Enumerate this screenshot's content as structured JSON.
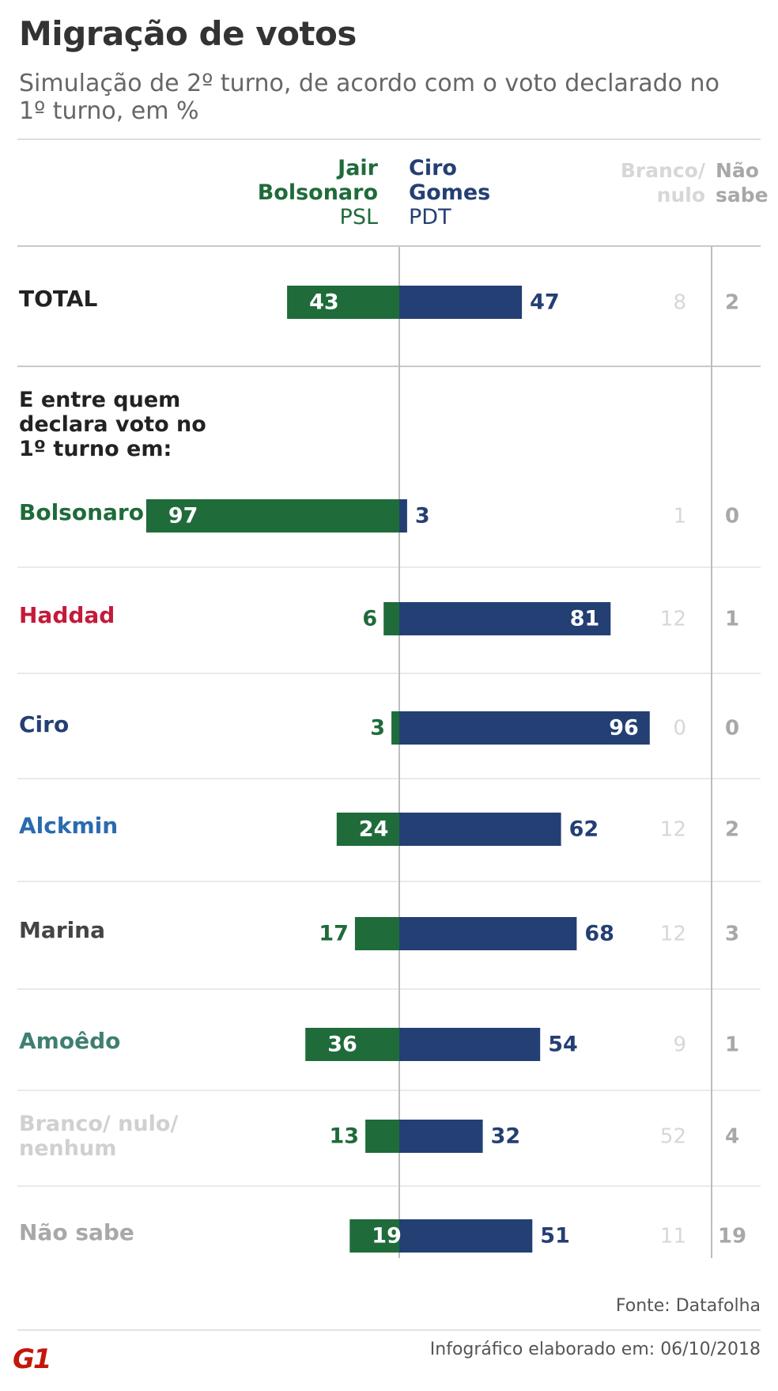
{
  "title": "Migração de votos",
  "subtitle": "Simulação de 2º turno, de acordo com o voto declarado no 1º turno, em %",
  "header": {
    "a_name1": "Jair",
    "a_name2": "Bolsonaro",
    "a_party": "PSL",
    "b_name1": "Ciro",
    "b_name2": "Gomes",
    "b_party": "PDT",
    "c_line1": "Branco/",
    "c_line2": "nulo",
    "d_line1": "Não",
    "d_line2": "sabe"
  },
  "section_label": "E entre quem declara voto no 1º turno em:",
  "colors": {
    "bolsonaro": "#1f6b3a",
    "ciro": "#243f73",
    "branco": "#d7d7d7",
    "naosabe": "#a8a8a8"
  },
  "chart_data": {
    "type": "bar",
    "orientation": "horizontal-diverging",
    "series": [
      {
        "name": "Jair Bolsonaro PSL",
        "color": "#1f6b3a",
        "values": [
          43,
          97,
          6,
          3,
          24,
          17,
          36,
          13,
          19
        ]
      },
      {
        "name": "Ciro Gomes PDT",
        "color": "#243f73",
        "values": [
          47,
          3,
          81,
          96,
          62,
          68,
          54,
          32,
          51
        ]
      },
      {
        "name": "Branco/ nulo",
        "color": "#d7d7d7",
        "values": [
          8,
          1,
          12,
          0,
          12,
          12,
          9,
          52,
          11
        ]
      },
      {
        "name": "Não sabe",
        "color": "#a8a8a8",
        "values": [
          2,
          0,
          1,
          0,
          2,
          3,
          1,
          4,
          19
        ]
      }
    ],
    "categories": [
      "TOTAL",
      "Bolsonaro",
      "Haddad",
      "Ciro",
      "Alckmin",
      "Marina",
      "Amoêdo",
      "Branco/ nulo/ nenhum",
      "Não sabe"
    ],
    "category_colors": [
      "#222222",
      "#1f6b3a",
      "#c41a3b",
      "#243f73",
      "#2a6bb0",
      "#444444",
      "#3f7f72",
      "#d0d0d0",
      "#a8a8a8"
    ],
    "units": "%"
  },
  "footer": {
    "source_label": "Fonte:",
    "source_value": "Datafolha",
    "made_label": "Infográfico elaborado em:",
    "made_date": "06/10/2018",
    "logo": "G1"
  }
}
